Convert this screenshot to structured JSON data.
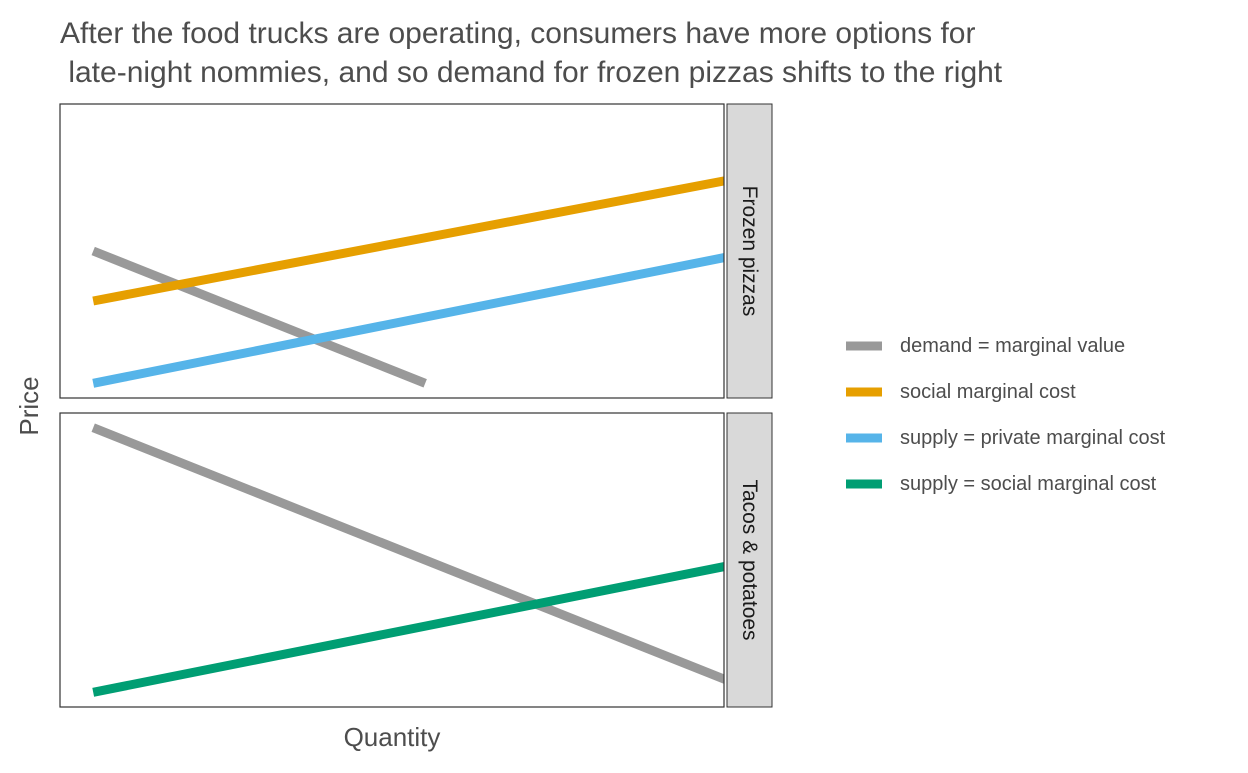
{
  "chart_data": {
    "type": "line",
    "title": "After the food trucks are operating, consumers have more options for late-night nommies, and so demand for frozen pizzas shifts to the right",
    "title_lines": [
      "After the food trucks are operating, consumers have more options for",
      " late-night nommies, and so demand for frozen pizzas shifts to the right"
    ],
    "xlabel": "Quantity",
    "ylabel": "Price",
    "grid": false,
    "legend_position": "right",
    "xlim": [
      0,
      10
    ],
    "ylim": [
      0,
      10
    ],
    "legend": [
      {
        "label": "demand = marginal value",
        "color": "#999999"
      },
      {
        "label": "social marginal cost",
        "color": "#E69F00"
      },
      {
        "label": "supply = private marginal cost",
        "color": "#56B4E9"
      },
      {
        "label": "supply = social marginal cost",
        "color": "#009E73"
      }
    ],
    "panels": [
      {
        "label": "Frozen pizzas",
        "series": [
          {
            "legend_index": 0,
            "color": "#999999",
            "x": [
              0.5,
              5.5
            ],
            "y": [
              5.0,
              0.5
            ]
          },
          {
            "legend_index": 1,
            "color": "#E69F00",
            "x": [
              0.5,
              10.5
            ],
            "y": [
              3.3,
              7.6
            ]
          },
          {
            "legend_index": 2,
            "color": "#56B4E9",
            "x": [
              0.5,
              10.5
            ],
            "y": [
              0.5,
              5.0
            ]
          }
        ]
      },
      {
        "label": "Tacos & potatoes",
        "series": [
          {
            "legend_index": 0,
            "color": "#999999",
            "x": [
              0.5,
              10.5
            ],
            "y": [
              9.5,
              0.5
            ]
          },
          {
            "legend_index": 3,
            "color": "#009E73",
            "x": [
              0.5,
              10.5
            ],
            "y": [
              0.5,
              5.0
            ]
          }
        ]
      }
    ]
  }
}
